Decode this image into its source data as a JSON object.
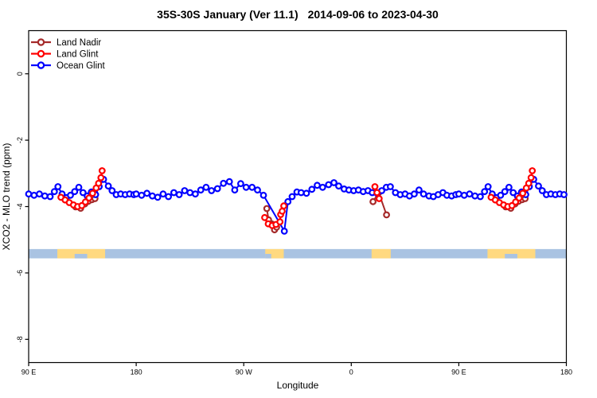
{
  "chart_data": {
    "type": "line",
    "title": "35S-30S January (Ver 11.1)",
    "title_dates": "2014-09-06 to 2023-04-30",
    "xlabel": "Longitude",
    "ylabel": "XCO2 - MLO trend (ppm)",
    "x_range": [
      0,
      450
    ],
    "y_range_top": 1.3,
    "y_range_bottom": -8.7,
    "grid": false,
    "legend_position": "top-left",
    "x_ticks": [
      {
        "pos": 0,
        "label": "90 E"
      },
      {
        "pos": 90,
        "label": "180"
      },
      {
        "pos": 180,
        "label": "90 W"
      },
      {
        "pos": 270,
        "label": "0"
      },
      {
        "pos": 360,
        "label": "90 E"
      },
      {
        "pos": 450,
        "label": "180"
      }
    ],
    "y_ticks": [
      {
        "pos": 0,
        "label": "0"
      },
      {
        "pos": -2,
        "label": "-2"
      },
      {
        "pos": -4,
        "label": "-4"
      },
      {
        "pos": -6,
        "label": "-6"
      },
      {
        "pos": -8,
        "label": "-8"
      }
    ],
    "series": [
      {
        "name": "Land Nadir",
        "color": "#A52A2A",
        "segments": [
          [
            [
              39.3,
              -4.01
            ],
            [
              43.5,
              -4.05
            ],
            [
              47,
              -3.92
            ],
            [
              50,
              -3.84
            ],
            [
              53,
              -3.79
            ],
            [
              55.5,
              -3.76
            ]
          ],
          [
            [
              199.3,
              -4.06
            ],
            [
              200.8,
              -4.4
            ],
            [
              203.3,
              -4.52
            ],
            [
              205.8,
              -4.7
            ],
            [
              207.5,
              -4.62
            ]
          ],
          [
            [
              288.2,
              -3.85
            ],
            [
              293,
              -3.58
            ],
            [
              299.5,
              -4.25
            ]
          ],
          [
            [
              399.3,
              -4.01
            ],
            [
              403.5,
              -4.05
            ],
            [
              407,
              -3.92
            ],
            [
              410,
              -3.84
            ],
            [
              413,
              -3.79
            ],
            [
              415.5,
              -3.76
            ]
          ]
        ]
      },
      {
        "name": "Land Glint",
        "color": "#FF0000",
        "segments": [
          [
            [
              27,
              -3.72
            ],
            [
              30.5,
              -3.8
            ],
            [
              34,
              -3.88
            ],
            [
              37.5,
              -3.95
            ],
            [
              41,
              -4.0
            ],
            [
              44.5,
              -3.97
            ],
            [
              47.5,
              -3.86
            ],
            [
              50.5,
              -3.74
            ],
            [
              53.5,
              -3.6
            ],
            [
              56.5,
              -3.44
            ],
            [
              58.5,
              -3.3
            ],
            [
              60.5,
              -3.13
            ],
            [
              61.5,
              -2.92
            ]
          ],
          [
            [
              197.5,
              -4.33
            ],
            [
              200.5,
              -4.52
            ],
            [
              203.8,
              -4.57
            ],
            [
              207,
              -4.54
            ],
            [
              210.3,
              -4.46
            ],
            [
              210.9,
              -4.24
            ],
            [
              212.2,
              -4.14
            ],
            [
              213.5,
              -3.98
            ]
          ],
          [
            [
              289.8,
              -3.4
            ],
            [
              291.5,
              -3.58
            ],
            [
              293.3,
              -3.76
            ]
          ],
          [
            [
              387,
              -3.72
            ],
            [
              390.5,
              -3.8
            ],
            [
              394,
              -3.88
            ],
            [
              397.5,
              -3.95
            ],
            [
              401,
              -4.0
            ],
            [
              404.5,
              -3.97
            ],
            [
              407.5,
              -3.86
            ],
            [
              410.5,
              -3.74
            ],
            [
              413.5,
              -3.6
            ],
            [
              416.5,
              -3.44
            ],
            [
              418.5,
              -3.3
            ],
            [
              420.5,
              -3.13
            ],
            [
              421.5,
              -2.92
            ]
          ]
        ]
      },
      {
        "name": "Ocean Glint",
        "color": "#0000FF",
        "segments": [
          [
            [
              0,
              -3.62
            ],
            [
              4.5,
              -3.66
            ],
            [
              9,
              -3.62
            ],
            [
              13.5,
              -3.68
            ],
            [
              18,
              -3.7
            ],
            [
              21.5,
              -3.55
            ],
            [
              24.5,
              -3.4
            ],
            [
              28,
              -3.62
            ],
            [
              31.5,
              -3.73
            ],
            [
              35,
              -3.66
            ],
            [
              38.5,
              -3.55
            ],
            [
              42,
              -3.42
            ],
            [
              45.5,
              -3.58
            ],
            [
              49,
              -3.68
            ],
            [
              52.5,
              -3.56
            ],
            [
              56,
              -3.64
            ],
            [
              59,
              -3.4
            ],
            [
              62.7,
              -3.18
            ],
            [
              66.7,
              -3.38
            ],
            [
              69.8,
              -3.52
            ],
            [
              73.3,
              -3.64
            ],
            [
              77,
              -3.62
            ],
            [
              80.8,
              -3.64
            ],
            [
              84.5,
              -3.62
            ],
            [
              88,
              -3.64
            ],
            [
              90,
              -3.62
            ],
            [
              94.5,
              -3.66
            ],
            [
              99,
              -3.6
            ],
            [
              103.5,
              -3.68
            ],
            [
              108,
              -3.72
            ],
            [
              112.5,
              -3.62
            ],
            [
              117,
              -3.7
            ],
            [
              121.5,
              -3.58
            ],
            [
              126,
              -3.64
            ],
            [
              130.5,
              -3.52
            ],
            [
              135,
              -3.58
            ],
            [
              139.5,
              -3.62
            ],
            [
              144,
              -3.5
            ],
            [
              148.5,
              -3.42
            ],
            [
              153,
              -3.52
            ],
            [
              158,
              -3.46
            ],
            [
              163,
              -3.3
            ],
            [
              168,
              -3.25
            ],
            [
              172.5,
              -3.5
            ],
            [
              177.5,
              -3.31
            ],
            [
              182,
              -3.42
            ],
            [
              187,
              -3.42
            ],
            [
              191.5,
              -3.5
            ],
            [
              196.5,
              -3.66
            ],
            [
              214,
              -4.74
            ],
            [
              217,
              -3.85
            ],
            [
              220.5,
              -3.7
            ],
            [
              224.5,
              -3.56
            ],
            [
              228,
              -3.58
            ],
            [
              232.5,
              -3.6
            ],
            [
              237,
              -3.48
            ],
            [
              241.5,
              -3.36
            ],
            [
              246,
              -3.42
            ],
            [
              251,
              -3.34
            ],
            [
              255.5,
              -3.28
            ],
            [
              259.5,
              -3.38
            ],
            [
              264,
              -3.47
            ],
            [
              268,
              -3.5
            ],
            [
              272,
              -3.52
            ],
            [
              276,
              -3.5
            ],
            [
              280,
              -3.55
            ],
            [
              284,
              -3.52
            ],
            [
              287.5,
              -3.58
            ],
            [
              291.5,
              -3.6
            ],
            [
              295.5,
              -3.52
            ],
            [
              299.3,
              -3.42
            ],
            [
              302.7,
              -3.4
            ],
            [
              307,
              -3.58
            ],
            [
              311,
              -3.64
            ],
            [
              315,
              -3.62
            ],
            [
              318.7,
              -3.68
            ],
            [
              322.7,
              -3.62
            ],
            [
              326.7,
              -3.5
            ],
            [
              330.5,
              -3.62
            ],
            [
              335,
              -3.68
            ],
            [
              338.7,
              -3.7
            ],
            [
              342.7,
              -3.64
            ],
            [
              346.7,
              -3.58
            ],
            [
              350,
              -3.66
            ],
            [
              354,
              -3.68
            ],
            [
              357.5,
              -3.64
            ],
            [
              360,
              -3.62
            ],
            [
              364.5,
              -3.66
            ],
            [
              369,
              -3.62
            ],
            [
              373.5,
              -3.68
            ],
            [
              378,
              -3.7
            ],
            [
              381.5,
              -3.55
            ],
            [
              384.5,
              -3.4
            ],
            [
              388,
              -3.62
            ],
            [
              391.5,
              -3.73
            ],
            [
              395,
              -3.66
            ],
            [
              398.5,
              -3.55
            ],
            [
              402,
              -3.42
            ],
            [
              405.5,
              -3.58
            ],
            [
              409,
              -3.68
            ],
            [
              412.5,
              -3.56
            ],
            [
              416,
              -3.64
            ],
            [
              419,
              -3.4
            ],
            [
              422.7,
              -3.18
            ],
            [
              426.7,
              -3.38
            ],
            [
              429.8,
              -3.52
            ],
            [
              433.3,
              -3.64
            ],
            [
              437,
              -3.62
            ],
            [
              440.8,
              -3.64
            ],
            [
              444.5,
              -3.62
            ],
            [
              448,
              -3.64
            ]
          ]
        ]
      }
    ],
    "map_strip": {
      "description": "35S-30S latitude band world map strip",
      "ocean_color": "#A9C3E2",
      "land_color": "#FFD980",
      "value_top": -5.28,
      "value_bottom": -5.56,
      "land_patches_x": [
        [
          24,
          64
        ],
        [
          198,
          213.5
        ],
        [
          287,
          303
        ],
        [
          384,
          424
        ]
      ],
      "coast_notches_x": [
        [
          38.5,
          49
        ],
        [
          198,
          203
        ],
        [
          398.5,
          409
        ]
      ]
    }
  }
}
